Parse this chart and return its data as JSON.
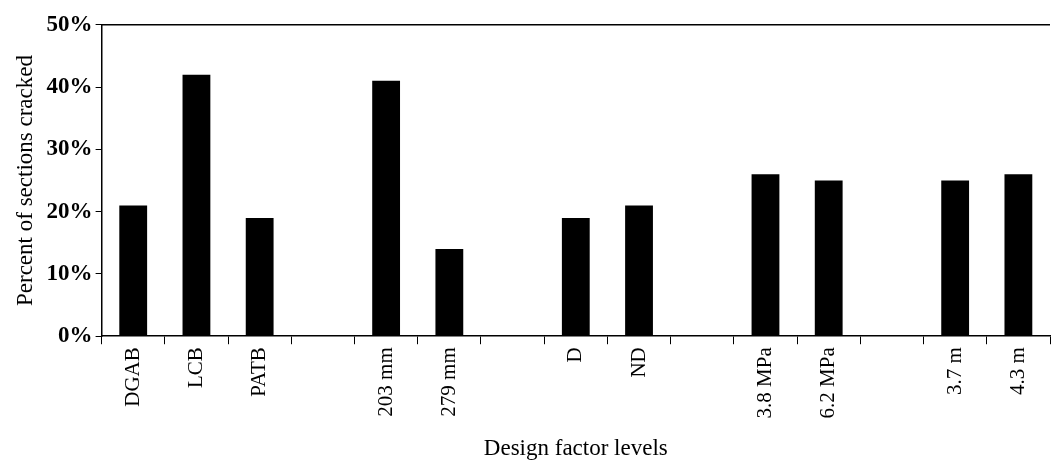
{
  "chart_data": {
    "type": "bar",
    "xlabel": "Design factor levels",
    "ylabel": "Percent of sections cracked",
    "categories": [
      "DGAB",
      "LCB",
      "PATB",
      null,
      "203 mm",
      "279 mm",
      null,
      "D",
      "ND",
      null,
      "3.8 MPa",
      "6.2 MPa",
      null,
      "3.7 m",
      "4.3 m"
    ],
    "values": [
      21,
      42,
      19,
      null,
      41,
      14,
      null,
      19,
      21,
      null,
      26,
      25,
      null,
      25,
      26
    ],
    "color": "#000000",
    "ylim": [
      0,
      50
    ],
    "yticks": [
      {
        "value": 0,
        "label": "0%"
      },
      {
        "value": 10,
        "label": "10%"
      },
      {
        "value": 20,
        "label": "20%"
      },
      {
        "value": 30,
        "label": "30%"
      },
      {
        "value": 40,
        "label": "40%"
      },
      {
        "value": 50,
        "label": "50%"
      }
    ],
    "grid": false,
    "legend": false
  }
}
